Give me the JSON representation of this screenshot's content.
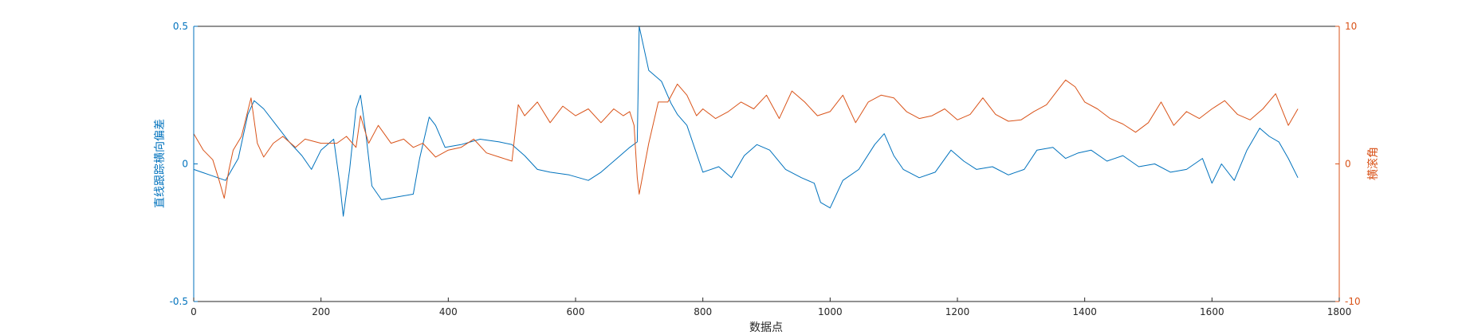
{
  "chart_data": {
    "type": "line",
    "title": "",
    "xlabel": "数据点",
    "ylabel_left": "直线跟踪横向偏差",
    "ylabel_right": "横滚角",
    "xlim": [
      0,
      1800
    ],
    "ylim_left": [
      -0.5,
      0.5
    ],
    "ylim_right": [
      -10,
      10
    ],
    "x_ticks": [
      0,
      200,
      400,
      600,
      800,
      1000,
      1200,
      1400,
      1600,
      1800
    ],
    "y_left_ticks": [
      -0.5,
      0,
      0.5
    ],
    "y_right_ticks": [
      -10,
      0,
      10
    ],
    "grid": false,
    "legend": "none",
    "colors": {
      "left": "#0072BD",
      "right": "#D95319"
    },
    "series": [
      {
        "axis": "left",
        "x": [
          0,
          25,
          50,
          70,
          85,
          95,
          110,
          130,
          150,
          170,
          185,
          200,
          220,
          230,
          235,
          245,
          255,
          262,
          270,
          280,
          295,
          320,
          345,
          355,
          370,
          380,
          395,
          420,
          450,
          480,
          500,
          520,
          540,
          560,
          590,
          620,
          640,
          665,
          685,
          697,
          700,
          715,
          735,
          750,
          760,
          775,
          800,
          825,
          845,
          865,
          885,
          905,
          930,
          955,
          975,
          985,
          1000,
          1020,
          1045,
          1070,
          1085,
          1100,
          1115,
          1140,
          1165,
          1190,
          1210,
          1230,
          1255,
          1280,
          1305,
          1325,
          1350,
          1370,
          1390,
          1410,
          1435,
          1460,
          1485,
          1510,
          1535,
          1560,
          1585,
          1600,
          1615,
          1635,
          1655,
          1675,
          1690,
          1705,
          1720,
          1735
        ],
        "y": [
          -0.02,
          -0.04,
          -0.06,
          0.02,
          0.18,
          0.23,
          0.2,
          0.14,
          0.08,
          0.03,
          -0.02,
          0.05,
          0.09,
          -0.08,
          -0.19,
          -0.02,
          0.2,
          0.25,
          0.12,
          -0.08,
          -0.13,
          -0.12,
          -0.11,
          0.02,
          0.17,
          0.14,
          0.06,
          0.07,
          0.09,
          0.08,
          0.07,
          0.03,
          -0.02,
          -0.03,
          -0.04,
          -0.06,
          -0.03,
          0.02,
          0.06,
          0.08,
          0.5,
          0.34,
          0.3,
          0.22,
          0.18,
          0.14,
          -0.03,
          -0.01,
          -0.05,
          0.03,
          0.07,
          0.05,
          -0.02,
          -0.05,
          -0.07,
          -0.14,
          -0.16,
          -0.06,
          -0.02,
          0.07,
          0.11,
          0.03,
          -0.02,
          -0.05,
          -0.03,
          0.05,
          0.01,
          -0.02,
          -0.01,
          -0.04,
          -0.02,
          0.05,
          0.06,
          0.02,
          0.04,
          0.05,
          0.01,
          0.03,
          -0.01,
          0.0,
          -0.03,
          -0.02,
          0.02,
          -0.07,
          0.0,
          -0.06,
          0.05,
          0.13,
          0.1,
          0.08,
          0.02,
          -0.05
        ]
      },
      {
        "axis": "right",
        "x": [
          0,
          15,
          30,
          40,
          48,
          55,
          62,
          75,
          90,
          100,
          110,
          125,
          140,
          160,
          175,
          200,
          225,
          240,
          255,
          262,
          275,
          290,
          310,
          330,
          345,
          360,
          380,
          400,
          420,
          440,
          460,
          480,
          500,
          510,
          520,
          540,
          560,
          580,
          600,
          620,
          640,
          660,
          675,
          685,
          692,
          697,
          700,
          715,
          730,
          745,
          760,
          775,
          790,
          800,
          820,
          840,
          860,
          880,
          900,
          920,
          940,
          960,
          980,
          1000,
          1020,
          1040,
          1060,
          1080,
          1100,
          1120,
          1140,
          1160,
          1180,
          1200,
          1220,
          1240,
          1260,
          1280,
          1300,
          1320,
          1340,
          1360,
          1370,
          1385,
          1400,
          1420,
          1440,
          1460,
          1480,
          1500,
          1520,
          1540,
          1560,
          1580,
          1600,
          1620,
          1640,
          1660,
          1680,
          1700,
          1720,
          1735
        ],
        "y": [
          2.2,
          1.0,
          0.3,
          -1.2,
          -2.5,
          -0.5,
          1.0,
          2.0,
          4.8,
          1.5,
          0.5,
          1.5,
          2.0,
          1.2,
          1.8,
          1.5,
          1.5,
          2.0,
          1.2,
          3.5,
          1.5,
          2.8,
          1.5,
          1.8,
          1.2,
          1.5,
          0.5,
          1.0,
          1.2,
          1.8,
          0.8,
          0.5,
          0.2,
          4.3,
          3.5,
          4.5,
          3.0,
          4.2,
          3.5,
          4.0,
          3.0,
          4.0,
          3.5,
          3.8,
          2.8,
          -1.0,
          -2.2,
          1.5,
          4.5,
          4.5,
          5.8,
          5.0,
          3.5,
          4.0,
          3.3,
          3.8,
          4.5,
          4.0,
          5.0,
          3.3,
          5.3,
          4.5,
          3.5,
          3.8,
          5.0,
          3.0,
          4.5,
          5.0,
          4.8,
          3.8,
          3.3,
          3.5,
          4.0,
          3.2,
          3.6,
          4.8,
          3.6,
          3.1,
          3.2,
          3.8,
          4.3,
          5.5,
          6.1,
          5.6,
          4.5,
          4.0,
          3.3,
          2.9,
          2.3,
          3.0,
          4.5,
          2.8,
          3.8,
          3.3,
          4.0,
          4.6,
          3.6,
          3.2,
          4.0,
          5.1,
          2.8,
          4.0
        ]
      }
    ]
  }
}
